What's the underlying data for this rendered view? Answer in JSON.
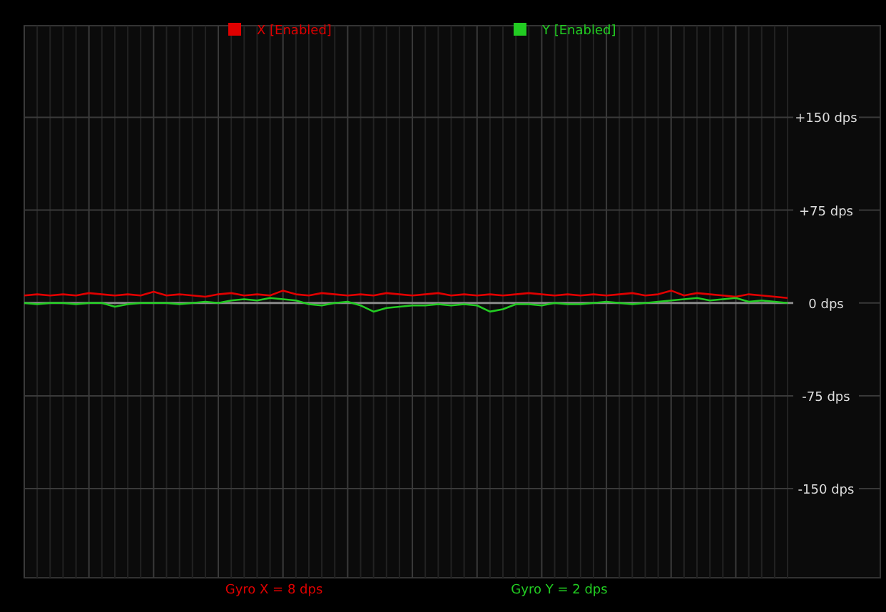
{
  "chart_data": {
    "type": "line",
    "categories": [
      null,
      null,
      null,
      null,
      null,
      null,
      null,
      null,
      null,
      null,
      null,
      null,
      null,
      null,
      null,
      null,
      null,
      null,
      null,
      null,
      null,
      null,
      null,
      null,
      null,
      null,
      null,
      null,
      null,
      null,
      null,
      null,
      null,
      null,
      null,
      null,
      null,
      null,
      null,
      null,
      null,
      null,
      null,
      null,
      null,
      null,
      null,
      null,
      null,
      null,
      null,
      null,
      null,
      null,
      null,
      null,
      null,
      null,
      null,
      null
    ],
    "series": [
      {
        "name": "X [Enabled]",
        "color": "#e00000",
        "values": [
          6,
          7,
          6,
          7,
          6,
          8,
          7,
          6,
          7,
          6,
          9,
          6,
          7,
          6,
          5,
          7,
          8,
          6,
          7,
          6,
          10,
          7,
          6,
          8,
          7,
          6,
          7,
          6,
          8,
          7,
          6,
          7,
          8,
          6,
          7,
          6,
          7,
          6,
          7,
          8,
          7,
          6,
          7,
          6,
          7,
          6,
          7,
          8,
          6,
          7,
          10,
          6,
          8,
          7,
          6,
          5,
          7,
          6,
          5,
          4
        ]
      },
      {
        "name": "Y [Enabled]",
        "color": "#22cc22",
        "values": [
          0,
          -1,
          0,
          0,
          -1,
          0,
          0,
          -3,
          -1,
          0,
          0,
          0,
          -1,
          0,
          1,
          0,
          2,
          3,
          2,
          4,
          3,
          2,
          -1,
          -2,
          0,
          1,
          -2,
          -7,
          -4,
          -3,
          -2,
          -2,
          -1,
          -2,
          -1,
          -2,
          -7,
          -5,
          -1,
          -1,
          -2,
          0,
          -1,
          -1,
          0,
          1,
          0,
          -1,
          0,
          1,
          2,
          3,
          4,
          2,
          3,
          4,
          1,
          2,
          1,
          0
        ]
      }
    ],
    "ylim": [
      -222,
      224
    ],
    "yticks": [
      {
        "value": 150,
        "label": "+150 dps"
      },
      {
        "value": 75,
        "label": "+75 dps"
      },
      {
        "value": 0,
        "label": "0 dps"
      },
      {
        "value": -75,
        "label": "-75 dps"
      },
      {
        "value": -150,
        "label": "-150 dps"
      }
    ],
    "ref_lines": [
      {
        "axis": "y",
        "value": 0,
        "color": "#8a8a8a"
      }
    ],
    "annotations": [
      "Gyro X = 8 dps",
      "Gyro Y = 2 dps"
    ],
    "grid": true,
    "legend": "top",
    "marker": "none",
    "line_style": "solid"
  }
}
